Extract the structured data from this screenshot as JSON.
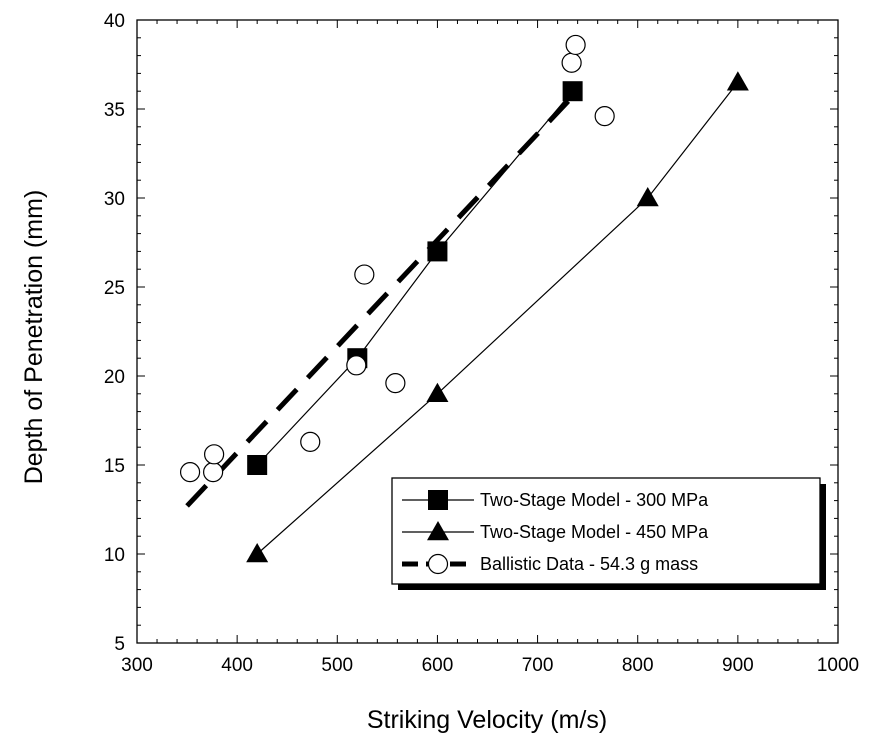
{
  "chart_data": {
    "type": "scatter",
    "xlabel": "Striking Velocity (m/s)",
    "ylabel": "Depth of Penetration (mm)",
    "xlim": [
      300,
      1000
    ],
    "ylim": [
      5,
      40
    ],
    "xticks": [
      300,
      400,
      500,
      600,
      700,
      800,
      900,
      1000
    ],
    "yticks": [
      5,
      10,
      15,
      20,
      25,
      30,
      35,
      40
    ],
    "grid": false,
    "legend_position": "lower-right",
    "series": [
      {
        "name": "Two-Stage Model - 300 MPa",
        "marker": "filled-square",
        "line": "solid",
        "x": [
          420,
          520,
          600,
          735
        ],
        "y": [
          15,
          21,
          27,
          36
        ]
      },
      {
        "name": "Two-Stage Model - 450 MPa",
        "marker": "filled-triangle",
        "line": "solid",
        "x": [
          420,
          600,
          810,
          900
        ],
        "y": [
          10,
          19,
          30,
          36.5
        ]
      },
      {
        "name": "Ballistic Data - 54.3 g mass",
        "marker": "open-circle",
        "line": "dashed",
        "x": [
          353,
          376,
          377,
          473,
          519,
          527,
          558,
          734,
          738,
          767
        ],
        "y": [
          14.6,
          14.6,
          15.6,
          16.3,
          20.6,
          25.7,
          19.6,
          37.6,
          38.6,
          34.6
        ],
        "fit": {
          "x": [
            350,
            740
          ],
          "y": [
            12.7,
            36
          ]
        }
      }
    ]
  }
}
